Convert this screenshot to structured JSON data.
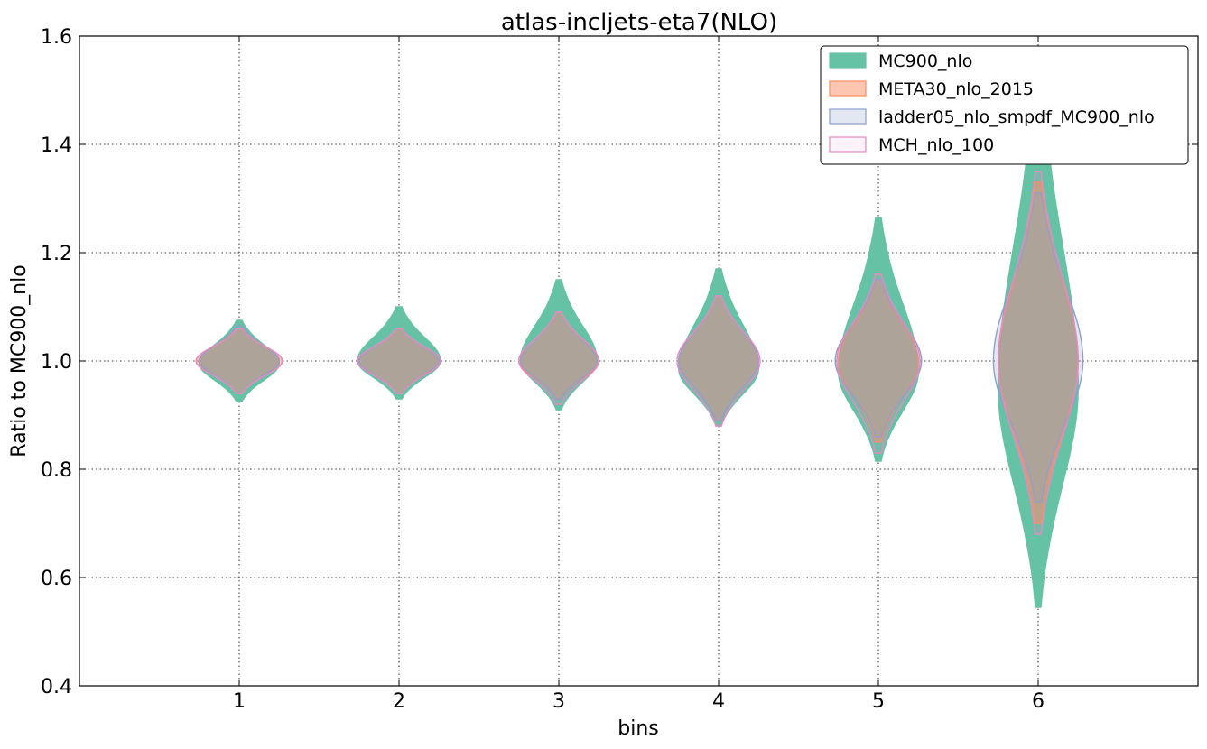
{
  "chart_data": {
    "type": "violin",
    "title": "atlas-incljets-eta7(NLO)",
    "xlabel": "bins",
    "ylabel": "Ratio to MC900_nlo",
    "xlim": [
      0,
      7
    ],
    "ylim": [
      0.4,
      1.6
    ],
    "x_ticks": [
      "1",
      "2",
      "3",
      "4",
      "5",
      "6"
    ],
    "y_ticks": [
      "0.4",
      "0.6",
      "0.8",
      "1.0",
      "1.2",
      "1.4",
      "1.6"
    ],
    "grid": true,
    "legend_position": "top-right",
    "series": [
      {
        "name": "MC900_nlo",
        "color": "#66c2a5",
        "fill_opacity": 1.0,
        "violins": [
          {
            "bin": 1,
            "center": 0.995,
            "min": 0.925,
            "max": 1.075,
            "half_width": 0.25
          },
          {
            "bin": 2,
            "center": 1.0,
            "min": 0.93,
            "max": 1.1,
            "half_width": 0.26
          },
          {
            "bin": 3,
            "center": 1.0,
            "min": 0.91,
            "max": 1.15,
            "half_width": 0.24
          },
          {
            "bin": 4,
            "center": 0.985,
            "min": 0.88,
            "max": 1.17,
            "half_width": 0.25
          },
          {
            "bin": 5,
            "center": 0.98,
            "min": 0.815,
            "max": 1.265,
            "half_width": 0.25
          },
          {
            "bin": 6,
            "center": 0.95,
            "min": 0.545,
            "max": 1.55,
            "half_width": 0.25
          }
        ]
      },
      {
        "name": "META30_nlo_2015",
        "color": "#fc8d62",
        "fill_opacity": 0.5,
        "violins": [
          {
            "bin": 1,
            "center": 1.0,
            "min": 0.94,
            "max": 1.06,
            "half_width": 0.27
          },
          {
            "bin": 2,
            "center": 1.0,
            "min": 0.94,
            "max": 1.06,
            "half_width": 0.25
          },
          {
            "bin": 3,
            "center": 1.0,
            "min": 0.93,
            "max": 1.09,
            "half_width": 0.25
          },
          {
            "bin": 4,
            "center": 1.0,
            "min": 0.89,
            "max": 1.12,
            "half_width": 0.25
          },
          {
            "bin": 5,
            "center": 1.0,
            "min": 0.85,
            "max": 1.15,
            "half_width": 0.25
          },
          {
            "bin": 6,
            "center": 1.0,
            "min": 0.7,
            "max": 1.33,
            "half_width": 0.25
          }
        ]
      },
      {
        "name": "ladder05_nlo_smpdf_MC900_nlo",
        "color": "#8da0cb",
        "fill_opacity": 0.25,
        "violins": [
          {
            "bin": 1,
            "center": 1.0,
            "min": 0.94,
            "max": 1.065,
            "half_width": 0.25
          },
          {
            "bin": 2,
            "center": 1.0,
            "min": 0.94,
            "max": 1.06,
            "half_width": 0.25
          },
          {
            "bin": 3,
            "center": 1.0,
            "min": 0.93,
            "max": 1.09,
            "half_width": 0.24
          },
          {
            "bin": 4,
            "center": 1.0,
            "min": 0.89,
            "max": 1.12,
            "half_width": 0.25
          },
          {
            "bin": 5,
            "center": 1.0,
            "min": 0.86,
            "max": 1.15,
            "half_width": 0.27
          },
          {
            "bin": 6,
            "center": 1.0,
            "min": 0.74,
            "max": 1.31,
            "half_width": 0.28
          }
        ]
      },
      {
        "name": "MCH_nlo_100",
        "color": "#e78ac3",
        "fill_opacity": 0.1,
        "violins": [
          {
            "bin": 1,
            "center": 1.0,
            "min": 0.94,
            "max": 1.06,
            "half_width": 0.27
          },
          {
            "bin": 2,
            "center": 1.0,
            "min": 0.94,
            "max": 1.06,
            "half_width": 0.26
          },
          {
            "bin": 3,
            "center": 1.0,
            "min": 0.92,
            "max": 1.09,
            "half_width": 0.25
          },
          {
            "bin": 4,
            "center": 1.0,
            "min": 0.88,
            "max": 1.12,
            "half_width": 0.26
          },
          {
            "bin": 5,
            "center": 1.0,
            "min": 0.83,
            "max": 1.16,
            "half_width": 0.26
          },
          {
            "bin": 6,
            "center": 1.0,
            "min": 0.68,
            "max": 1.35,
            "half_width": 0.25
          }
        ]
      }
    ]
  }
}
